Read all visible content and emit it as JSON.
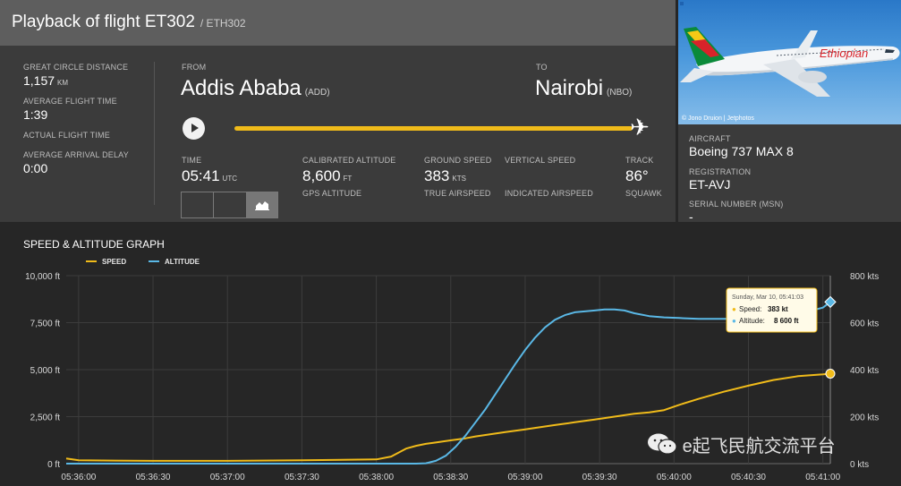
{
  "header": {
    "title": "Playback of flight ET302",
    "subtitle": "/ ETH302"
  },
  "stats": [
    {
      "label": "GREAT CIRCLE DISTANCE",
      "value": "1,157",
      "unit": "KM"
    },
    {
      "label": "AVERAGE FLIGHT TIME",
      "value": "1:39",
      "unit": ""
    },
    {
      "label": "ACTUAL FLIGHT TIME",
      "value": "",
      "unit": ""
    },
    {
      "label": "AVERAGE ARRIVAL DELAY",
      "value": "0:00",
      "unit": ""
    }
  ],
  "route": {
    "from_label": "FROM",
    "from_city": "Addis Ababa",
    "from_code": "(ADD)",
    "to_label": "TO",
    "to_city": "Nairobi",
    "to_code": "(NBO)"
  },
  "playback": {
    "progress": 1.0
  },
  "metrics": {
    "time_label": "TIME",
    "time_value": "05:41",
    "time_unit": "UTC",
    "cal_alt_label": "CALIBRATED ALTITUDE",
    "cal_alt_value": "8,600",
    "cal_alt_unit": "FT",
    "gps_alt_label": "GPS ALTITUDE",
    "ground_speed_label": "GROUND SPEED",
    "ground_speed_value": "383",
    "ground_speed_unit": "KTS",
    "true_airspeed_label": "TRUE AIRSPEED",
    "vertical_speed_label": "VERTICAL SPEED",
    "indicated_airspeed_label": "INDICATED AIRSPEED",
    "track_label": "TRACK",
    "track_value": "86°",
    "squawk_label": "SQUAWK"
  },
  "photo": {
    "credit": "© Jono Druion | Jetphotos",
    "livery_text": "Ethiopian"
  },
  "aircraft": {
    "aircraft_label": "AIRCRAFT",
    "aircraft_value": "Boeing 737 MAX 8",
    "registration_label": "REGISTRATION",
    "registration_value": "ET-AVJ",
    "serial_label": "SERIAL NUMBER (MSN)",
    "serial_value": "-"
  },
  "graph_title": "SPEED & ALTITUDE GRAPH",
  "colors": {
    "speed": "#f0bb1a",
    "altitude": "#5ab8e6",
    "accent": "#f0bb1a"
  },
  "tooltip": {
    "date": "Sunday, Mar 10, 05:41:03",
    "speed_label": "Speed:",
    "speed_value": "383 kt",
    "altitude_label": "Altitude:",
    "altitude_value": "8 600 ft"
  },
  "watermark": "e起飞民航交流平台",
  "chart_data": {
    "type": "line",
    "title": "SPEED & ALTITUDE GRAPH",
    "x": [
      "05:35:55",
      "05:36:00",
      "05:36:30",
      "05:37:00",
      "05:37:30",
      "05:38:00",
      "05:38:06",
      "05:38:12",
      "05:38:16",
      "05:38:20",
      "05:38:24",
      "05:38:28",
      "05:38:32",
      "05:38:36",
      "05:38:40",
      "05:38:44",
      "05:38:48",
      "05:38:52",
      "05:38:56",
      "05:39:00",
      "05:39:04",
      "05:39:08",
      "05:39:12",
      "05:39:16",
      "05:39:20",
      "05:39:24",
      "05:39:28",
      "05:39:32",
      "05:39:36",
      "05:39:40",
      "05:39:44",
      "05:39:50",
      "05:39:56",
      "05:40:02",
      "05:40:10",
      "05:40:20",
      "05:40:30",
      "05:40:40",
      "05:40:50",
      "05:41:00",
      "05:41:03"
    ],
    "x_ticks": [
      "05:36:00",
      "05:36:30",
      "05:37:00",
      "05:37:30",
      "05:38:00",
      "05:38:30",
      "05:39:00",
      "05:39:30",
      "05:40:00",
      "05:40:30",
      "05:41:00"
    ],
    "series": [
      {
        "name": "SPEED",
        "axis": "right",
        "unit": "kts",
        "values": [
          22,
          14,
          12,
          12,
          14,
          18,
          30,
          64,
          76,
          84,
          90,
          96,
          102,
          108,
          116,
          122,
          128,
          134,
          140,
          146,
          152,
          158,
          164,
          170,
          176,
          182,
          188,
          194,
          200,
          206,
          212,
          218,
          228,
          250,
          276,
          306,
          332,
          356,
          372,
          380,
          383
        ]
      },
      {
        "name": "ALTITUDE",
        "axis": "left",
        "unit": "ft",
        "values": [
          0,
          0,
          0,
          0,
          0,
          0,
          0,
          0,
          0,
          20,
          150,
          420,
          900,
          1500,
          2200,
          2900,
          3700,
          4500,
          5300,
          6050,
          6700,
          7250,
          7650,
          7900,
          8050,
          8100,
          8150,
          8200,
          8200,
          8150,
          8000,
          7850,
          7780,
          7750,
          7700,
          7700,
          7700,
          7750,
          7950,
          8300,
          8600
        ]
      }
    ],
    "ylabel_left": "ft",
    "ylim_left": [
      0,
      10000
    ],
    "yticks_left": [
      "0 ft",
      "2,500 ft",
      "5,000 ft",
      "7,500 ft",
      "10,000 ft"
    ],
    "ylabel_right": "kts",
    "ylim_right": [
      0,
      800
    ],
    "yticks_right": [
      "0 kts",
      "200 kts",
      "400 kts",
      "600 kts",
      "800 kts"
    ],
    "legend": [
      "SPEED",
      "ALTITUDE"
    ],
    "legend_position": "top-left",
    "grid": true
  }
}
